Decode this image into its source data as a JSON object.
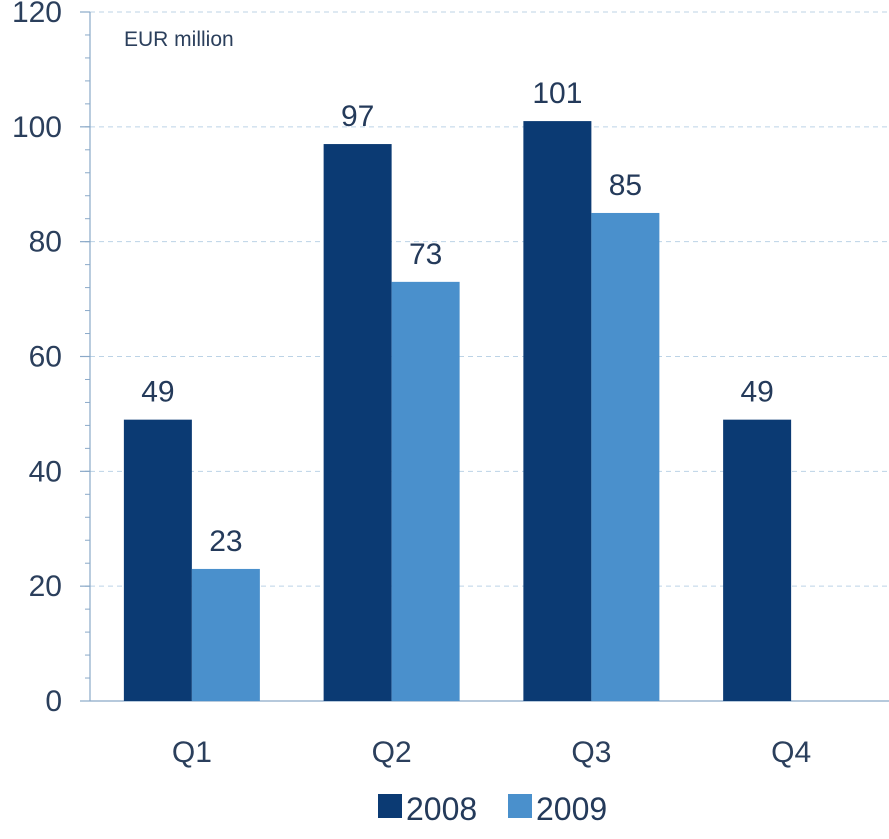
{
  "chart_data": {
    "type": "bar",
    "unit_label": "EUR million",
    "categories": [
      "Q1",
      "Q2",
      "Q3",
      "Q4"
    ],
    "series": [
      {
        "name": "2008",
        "color": "#0b3a73",
        "values": [
          49,
          97,
          101,
          49
        ]
      },
      {
        "name": "2009",
        "color": "#4a90cc",
        "values": [
          23,
          73,
          85,
          null
        ]
      }
    ],
    "ylim": [
      0,
      120
    ],
    "yticks": [
      0,
      20,
      40,
      60,
      80,
      100,
      120
    ],
    "grid": true,
    "legend_position": "bottom-center"
  }
}
